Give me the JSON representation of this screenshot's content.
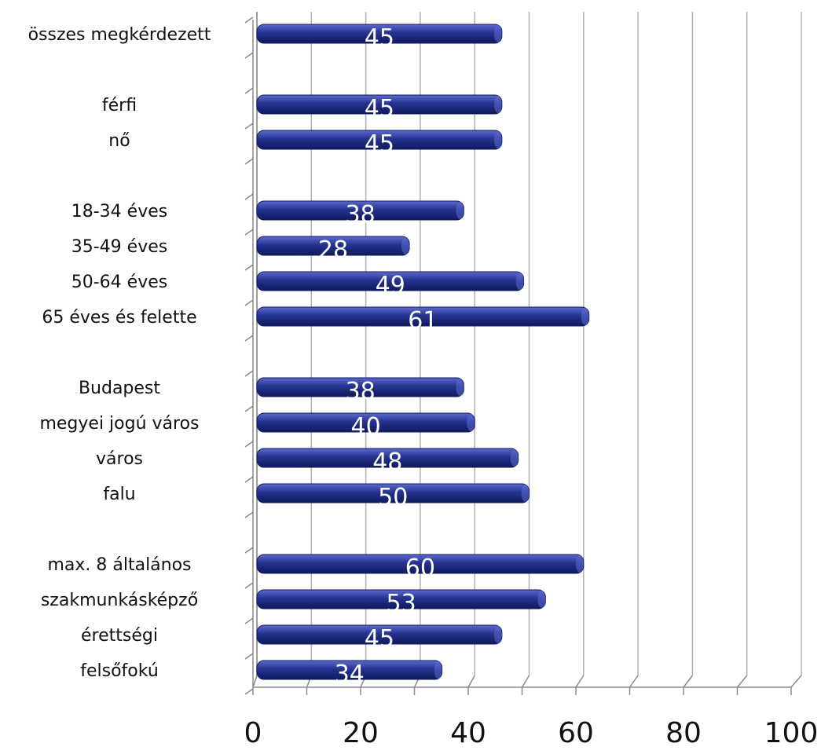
{
  "chart_data": {
    "type": "bar",
    "orientation": "horizontal",
    "categories": [
      "összes megkérdezett",
      "",
      "férfi",
      "nő",
      "",
      "18-34 éves",
      "35-49 éves",
      "50-64 éves",
      "65 éves és felette",
      "",
      "Budapest",
      "megyei jogú város",
      "város",
      "falu",
      "",
      "max. 8 általános",
      "szakmunkásképző",
      "érettségi",
      "felsőfokú"
    ],
    "values": [
      45,
      null,
      45,
      45,
      null,
      38,
      28,
      49,
      61,
      null,
      38,
      40,
      48,
      50,
      null,
      60,
      53,
      45,
      34
    ],
    "data_labels": [
      "45",
      "",
      "45",
      "45",
      "",
      "38",
      "28",
      "49",
      "61",
      "",
      "38",
      "40",
      "48",
      "50",
      "",
      "60",
      "53",
      "45",
      "34"
    ],
    "xlim": [
      0,
      100
    ],
    "xticks": [
      0,
      20,
      40,
      60,
      80,
      100
    ],
    "xtick_labels": [
      "0",
      "20",
      "40",
      "60",
      "80",
      "100"
    ],
    "grid": true,
    "legend": "none",
    "title": "",
    "xlabel": "",
    "ylabel": "",
    "colors": {
      "bar": "#25338f",
      "bar_dark": "#0f1a5c",
      "bar_light": "#5c6ad0",
      "grid": "#b0b0b0",
      "axis": "#8a8a8a",
      "label": "#111111",
      "data_label": "#ffffff"
    }
  }
}
